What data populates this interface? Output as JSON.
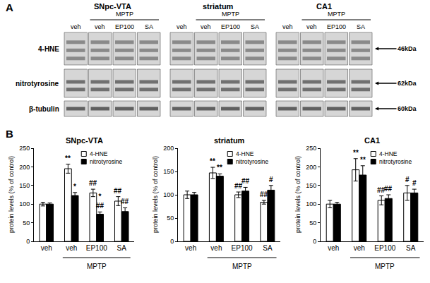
{
  "panel_a": {
    "label": "A",
    "regions": [
      "SNpc-VTA",
      "striatum",
      "CA1"
    ],
    "group_label": "MPTP",
    "lanes": [
      "veh",
      "veh",
      "EP100",
      "SA"
    ],
    "rows": [
      {
        "name": "4-HNE",
        "size": "46kDa"
      },
      {
        "name": "nitrotyrosine",
        "size": "62kDa"
      },
      {
        "name": "β-tubulin",
        "size": "60kDa"
      }
    ]
  },
  "panel_b": {
    "label": "B"
  },
  "chart_data": [
    {
      "type": "bar",
      "title": "SNpc-VTA",
      "ylabel": "protein levels (% of control)",
      "categories": [
        "veh",
        "veh",
        "EP100",
        "SA"
      ],
      "group": {
        "label": "MPTP",
        "from": 1,
        "to": 3
      },
      "series": [
        {
          "name": "4-HNE",
          "color": "#ffffff",
          "values": [
            100,
            195,
            130,
            108
          ],
          "errors": [
            5,
            12,
            10,
            12
          ],
          "significance": [
            null,
            "**",
            "##",
            "##"
          ]
        },
        {
          "name": "nitrotyrosine",
          "color": "#000000",
          "values": [
            100,
            123,
            73,
            80
          ],
          "errors": [
            3,
            8,
            6,
            10
          ],
          "significance": [
            null,
            "*",
            [
              "*",
              "##"
            ],
            "##"
          ]
        }
      ],
      "ylim": [
        0,
        250
      ],
      "yticks": [
        0,
        50,
        100,
        150,
        200,
        250
      ],
      "legend": "upper right",
      "grid": false
    },
    {
      "type": "bar",
      "title": "striatum",
      "ylabel": "protein levels (% of control)",
      "categories": [
        "veh",
        "veh",
        "EP100",
        "SA"
      ],
      "group": {
        "label": "MPTP",
        "from": 1,
        "to": 3
      },
      "series": [
        {
          "name": "4-HNE",
          "color": "#ffffff",
          "values": [
            100,
            147,
            100,
            84
          ],
          "errors": [
            8,
            12,
            6,
            4
          ],
          "significance": [
            null,
            "**",
            "##",
            "##"
          ]
        },
        {
          "name": "nitrotyrosine",
          "color": "#000000",
          "values": [
            100,
            140,
            108,
            110
          ],
          "errors": [
            5,
            5,
            8,
            10
          ],
          "significance": [
            null,
            "**",
            "##",
            "#"
          ]
        }
      ],
      "ylim": [
        0,
        200
      ],
      "yticks": [
        0,
        50,
        100,
        150,
        200
      ],
      "legend": "upper right",
      "grid": false
    },
    {
      "type": "bar",
      "title": "CA1",
      "ylabel": "protein levels (% of control)",
      "categories": [
        "veh",
        "veh",
        "EP100",
        "SA"
      ],
      "group": {
        "label": "MPTP",
        "from": 1,
        "to": 3
      },
      "series": [
        {
          "name": "4-HNE",
          "color": "#ffffff",
          "values": [
            100,
            192,
            110,
            130
          ],
          "errors": [
            10,
            30,
            12,
            20
          ],
          "significance": [
            null,
            "**",
            "##",
            "#"
          ]
        },
        {
          "name": "nitrotyrosine",
          "color": "#000000",
          "values": [
            100,
            178,
            115,
            130
          ],
          "errors": [
            5,
            25,
            10,
            10
          ],
          "significance": [
            null,
            "**",
            "##",
            "#"
          ]
        }
      ],
      "ylim": [
        0,
        250
      ],
      "yticks": [
        0,
        50,
        100,
        150,
        200,
        250
      ],
      "legend": "upper right",
      "grid": false
    }
  ]
}
